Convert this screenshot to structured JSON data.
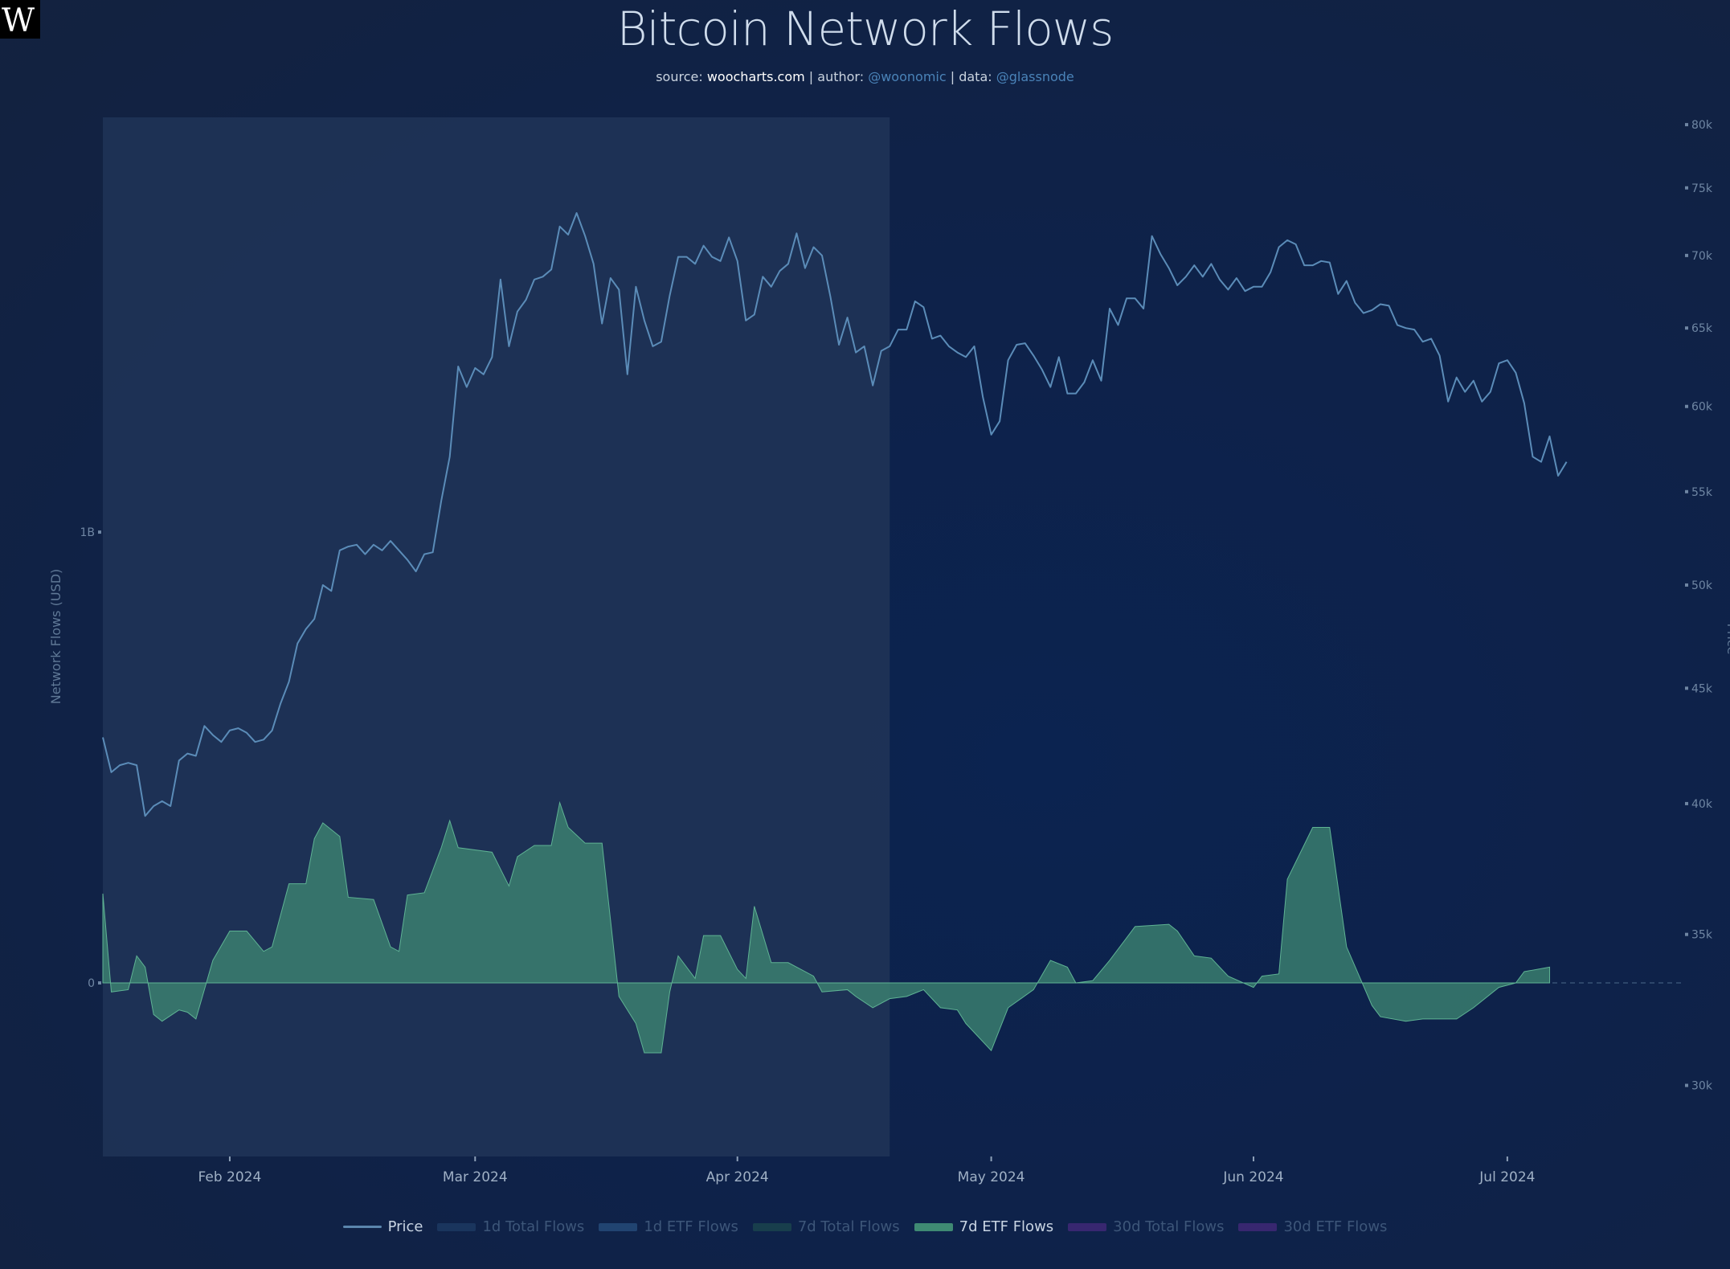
{
  "logo": "W",
  "title": "Bitcoin Network Flows",
  "subtitle": {
    "source_label": "source:",
    "source": "woocharts.com",
    "author_label": "author:",
    "author": "@woonomic",
    "data_label": "data:",
    "data": "@glassnode",
    "sep": "|"
  },
  "legend": [
    {
      "label": "Price",
      "color": "#5b86ad",
      "kind": "line",
      "active": true
    },
    {
      "label": "1d Total Flows",
      "color": "#1f3d66",
      "kind": "box",
      "active": false
    },
    {
      "label": "1d ETF Flows",
      "color": "#2a5283",
      "kind": "box",
      "active": false
    },
    {
      "label": "7d Total Flows",
      "color": "#1d4a4e",
      "kind": "box",
      "active": false
    },
    {
      "label": "7d ETF Flows",
      "color": "#3f8a73",
      "kind": "box",
      "active": true
    },
    {
      "label": "30d Total Flows",
      "color": "#4a2a80",
      "kind": "box",
      "active": false
    },
    {
      "label": "30d ETF Flows",
      "color": "#4a2a80",
      "kind": "box",
      "active": false
    }
  ],
  "chart_data": {
    "type": "line+area",
    "title": "Bitcoin Network Flows",
    "x_range": [
      "2024-01-17",
      "2024-07-22"
    ],
    "x_ticks": [
      {
        "date": "2024-02-01",
        "label": "Feb 2024"
      },
      {
        "date": "2024-03-01",
        "label": "Mar 2024"
      },
      {
        "date": "2024-04-01",
        "label": "Apr 2024"
      },
      {
        "date": "2024-05-01",
        "label": "May 2024"
      },
      {
        "date": "2024-06-01",
        "label": "Jun 2024"
      },
      {
        "date": "2024-07-01",
        "label": "Jul 2024"
      }
    ],
    "highlight_region": {
      "start": "2024-01-17",
      "end": "2024-04-19"
    },
    "y_left": {
      "label": "Network Flows (USD)",
      "unit": "millions USD",
      "range": [
        -385,
        1920
      ],
      "ticks": [
        {
          "value": 0,
          "label": "0"
        },
        {
          "value": 1000,
          "label": "1B"
        }
      ]
    },
    "y_right": {
      "label": "Price",
      "scale": "log",
      "range": [
        27900,
        80600
      ],
      "ticks": [
        {
          "value": 30000,
          "label": "30k"
        },
        {
          "value": 35000,
          "label": "35k"
        },
        {
          "value": 40000,
          "label": "40k"
        },
        {
          "value": 45000,
          "label": "45k"
        },
        {
          "value": 50000,
          "label": "50k"
        },
        {
          "value": 55000,
          "label": "55k"
        },
        {
          "value": 60000,
          "label": "60k"
        },
        {
          "value": 65000,
          "label": "65k"
        },
        {
          "value": 70000,
          "label": "70k"
        },
        {
          "value": 75000,
          "label": "75k"
        },
        {
          "value": 80000,
          "label": "80k"
        }
      ]
    },
    "price": {
      "name": "Price",
      "start_date": "2024-01-17",
      "step_days": 1,
      "unit": "thousand USD",
      "values": [
        42.8,
        41.3,
        41.6,
        41.7,
        41.6,
        39.5,
        39.9,
        40.1,
        39.9,
        41.8,
        42.1,
        42.0,
        43.3,
        42.9,
        42.6,
        43.1,
        43.2,
        43.0,
        42.6,
        42.7,
        43.1,
        44.3,
        45.3,
        47.1,
        47.8,
        48.3,
        50.0,
        49.7,
        51.8,
        52.0,
        52.1,
        51.6,
        52.1,
        51.8,
        52.3,
        51.8,
        51.3,
        50.7,
        51.6,
        51.7,
        54.5,
        57.0,
        62.5,
        61.2,
        62.4,
        62.0,
        63.1,
        68.3,
        63.8,
        66.1,
        66.9,
        68.3,
        68.5,
        69.0,
        72.1,
        71.5,
        73.1,
        71.4,
        69.4,
        65.3,
        68.4,
        67.6,
        62.0,
        67.8,
        65.5,
        63.8,
        64.1,
        67.2,
        69.9,
        69.9,
        69.4,
        70.7,
        69.9,
        69.6,
        71.3,
        69.6,
        65.5,
        65.9,
        68.5,
        67.8,
        68.9,
        69.4,
        71.6,
        69.1,
        70.6,
        70.0,
        67.1,
        63.9,
        65.7,
        63.4,
        63.8,
        61.3,
        63.5,
        63.8,
        64.9,
        64.9,
        66.8,
        66.4,
        64.3,
        64.5,
        63.8,
        63.4,
        63.1,
        63.8,
        60.6,
        58.3,
        59.1,
        62.9,
        63.9,
        64.0,
        63.2,
        62.3,
        61.2,
        63.1,
        60.8,
        60.8,
        61.5,
        62.9,
        61.6,
        66.3,
        65.2,
        67.0,
        67.0,
        66.3,
        71.4,
        70.1,
        69.1,
        67.9,
        68.5,
        69.3,
        68.5,
        69.4,
        68.3,
        67.6,
        68.4,
        67.5,
        67.8,
        67.8,
        68.8,
        70.6,
        71.1,
        70.8,
        69.3,
        69.3,
        69.6,
        69.5,
        67.3,
        68.2,
        66.7,
        66.0,
        66.2,
        66.6,
        66.5,
        65.2,
        65.0,
        64.9,
        64.1,
        64.3,
        63.2,
        60.3,
        61.8,
        60.9,
        61.6,
        60.3,
        60.9,
        62.7,
        62.9,
        62.1,
        60.2,
        57.0,
        56.7,
        58.2,
        55.9,
        56.7
      ]
    },
    "etf_flows_7d": {
      "name": "7d ETF Flows",
      "unit": "millions USD",
      "points": [
        [
          "2024-01-17",
          198
        ],
        [
          "2024-01-18",
          -20
        ],
        [
          "2024-01-20",
          -15
        ],
        [
          "2024-01-21",
          60
        ],
        [
          "2024-01-22",
          35
        ],
        [
          "2024-01-23",
          -70
        ],
        [
          "2024-01-24",
          -85
        ],
        [
          "2024-01-26",
          -60
        ],
        [
          "2024-01-27",
          -65
        ],
        [
          "2024-01-28",
          -80
        ],
        [
          "2024-01-30",
          50
        ],
        [
          "2024-02-01",
          115
        ],
        [
          "2024-02-03",
          115
        ],
        [
          "2024-02-05",
          70
        ],
        [
          "2024-02-06",
          80
        ],
        [
          "2024-02-08",
          220
        ],
        [
          "2024-02-10",
          220
        ],
        [
          "2024-02-11",
          320
        ],
        [
          "2024-02-12",
          355
        ],
        [
          "2024-02-14",
          325
        ],
        [
          "2024-02-15",
          190
        ],
        [
          "2024-02-18",
          185
        ],
        [
          "2024-02-20",
          80
        ],
        [
          "2024-02-21",
          70
        ],
        [
          "2024-02-22",
          195
        ],
        [
          "2024-02-24",
          200
        ],
        [
          "2024-02-26",
          300
        ],
        [
          "2024-02-27",
          360
        ],
        [
          "2024-02-28",
          300
        ],
        [
          "2024-03-03",
          290
        ],
        [
          "2024-03-05",
          215
        ],
        [
          "2024-03-06",
          280
        ],
        [
          "2024-03-08",
          305
        ],
        [
          "2024-03-10",
          305
        ],
        [
          "2024-03-11",
          400
        ],
        [
          "2024-03-12",
          345
        ],
        [
          "2024-03-14",
          310
        ],
        [
          "2024-03-16",
          310
        ],
        [
          "2024-03-18",
          -30
        ],
        [
          "2024-03-20",
          -90
        ],
        [
          "2024-03-21",
          -155
        ],
        [
          "2024-03-23",
          -155
        ],
        [
          "2024-03-24",
          -20
        ],
        [
          "2024-03-25",
          60
        ],
        [
          "2024-03-27",
          10
        ],
        [
          "2024-03-28",
          105
        ],
        [
          "2024-03-30",
          105
        ],
        [
          "2024-04-01",
          30
        ],
        [
          "2024-04-02",
          10
        ],
        [
          "2024-04-03",
          170
        ],
        [
          "2024-04-05",
          45
        ],
        [
          "2024-04-07",
          45
        ],
        [
          "2024-04-10",
          15
        ],
        [
          "2024-04-11",
          -20
        ],
        [
          "2024-04-14",
          -15
        ],
        [
          "2024-04-15",
          -30
        ],
        [
          "2024-04-17",
          -55
        ],
        [
          "2024-04-19",
          -35
        ],
        [
          "2024-04-21",
          -30
        ],
        [
          "2024-04-23",
          -15
        ],
        [
          "2024-04-25",
          -55
        ],
        [
          "2024-04-27",
          -60
        ],
        [
          "2024-04-28",
          -90
        ],
        [
          "2024-05-01",
          -150
        ],
        [
          "2024-05-03",
          -55
        ],
        [
          "2024-05-06",
          -15
        ],
        [
          "2024-05-08",
          50
        ],
        [
          "2024-05-10",
          35
        ],
        [
          "2024-05-11",
          0
        ],
        [
          "2024-05-13",
          5
        ],
        [
          "2024-05-15",
          50
        ],
        [
          "2024-05-18",
          125
        ],
        [
          "2024-05-22",
          130
        ],
        [
          "2024-05-23",
          115
        ],
        [
          "2024-05-25",
          60
        ],
        [
          "2024-05-27",
          55
        ],
        [
          "2024-05-29",
          15
        ],
        [
          "2024-06-01",
          -10
        ],
        [
          "2024-06-02",
          15
        ],
        [
          "2024-06-04",
          20
        ],
        [
          "2024-06-05",
          230
        ],
        [
          "2024-06-08",
          345
        ],
        [
          "2024-06-10",
          345
        ],
        [
          "2024-06-12",
          80
        ],
        [
          "2024-06-15",
          -50
        ],
        [
          "2024-06-16",
          -75
        ],
        [
          "2024-06-19",
          -85
        ],
        [
          "2024-06-21",
          -80
        ],
        [
          "2024-06-25",
          -80
        ],
        [
          "2024-06-27",
          -55
        ],
        [
          "2024-06-30",
          -10
        ],
        [
          "2024-07-02",
          0
        ],
        [
          "2024-07-03",
          25
        ],
        [
          "2024-07-06",
          35
        ]
      ]
    },
    "colors": {
      "price": "#5b8cb8",
      "flows_fill": "#3f8a73",
      "flows_line": "#5fb394",
      "highlight": "#1f3356",
      "zero_line": "#4a6a8a"
    }
  }
}
